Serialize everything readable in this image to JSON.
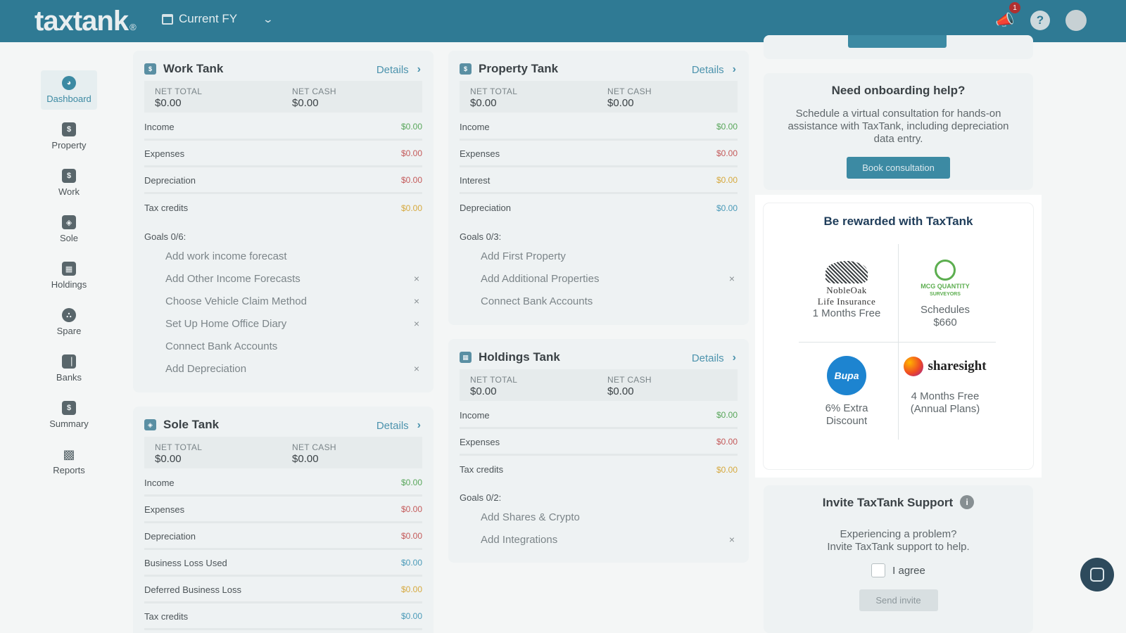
{
  "header": {
    "logo": "taxtank",
    "logo_mark": "®",
    "fy_label": "Current FY",
    "notification_count": "1",
    "help_glyph": "?"
  },
  "sidebar": {
    "items": [
      {
        "label": "Dashboard",
        "icon": "dashboard-icon"
      },
      {
        "label": "Property",
        "icon": "property-icon"
      },
      {
        "label": "Work",
        "icon": "work-icon"
      },
      {
        "label": "Sole",
        "icon": "sole-icon"
      },
      {
        "label": "Holdings",
        "icon": "holdings-icon"
      },
      {
        "label": "Spare",
        "icon": "spare-icon"
      },
      {
        "label": "Banks",
        "icon": "banks-icon"
      },
      {
        "label": "Summary",
        "icon": "summary-icon"
      },
      {
        "label": "Reports",
        "icon": "reports-icon"
      }
    ]
  },
  "common": {
    "details": "Details",
    "net_total": "NET TOTAL",
    "net_cash": "NET CASH",
    "zero": "$0.00",
    "close": "×"
  },
  "work": {
    "title": "Work Tank",
    "rows": [
      {
        "label": "Income",
        "value": "$0.00"
      },
      {
        "label": "Expenses",
        "value": "$0.00"
      },
      {
        "label": "Depreciation",
        "value": "$0.00"
      },
      {
        "label": "Tax credits",
        "value": "$0.00"
      }
    ],
    "goals_label": "Goals 0/6:",
    "goals": [
      "Add work income forecast",
      "Add Other Income Forecasts",
      "Choose Vehicle Claim Method",
      "Set Up Home Office Diary",
      "Connect Bank Accounts",
      "Add Depreciation"
    ]
  },
  "sole": {
    "title": "Sole Tank",
    "rows": [
      {
        "label": "Income",
        "value": "$0.00"
      },
      {
        "label": "Expenses",
        "value": "$0.00"
      },
      {
        "label": "Depreciation",
        "value": "$0.00"
      },
      {
        "label": "Business Loss Used",
        "value": "$0.00"
      },
      {
        "label": "Deferred Business Loss",
        "value": "$0.00"
      },
      {
        "label": "Tax credits",
        "value": "$0.00"
      }
    ]
  },
  "property": {
    "title": "Property Tank",
    "rows": [
      {
        "label": "Income",
        "value": "$0.00"
      },
      {
        "label": "Expenses",
        "value": "$0.00"
      },
      {
        "label": "Interest",
        "value": "$0.00"
      },
      {
        "label": "Depreciation",
        "value": "$0.00"
      }
    ],
    "goals_label": "Goals 0/3:",
    "goals": [
      "Add First Property",
      "Add Additional Properties",
      "Connect Bank Accounts"
    ]
  },
  "holdings": {
    "title": "Holdings Tank",
    "rows": [
      {
        "label": "Income",
        "value": "$0.00"
      },
      {
        "label": "Expenses",
        "value": "$0.00"
      },
      {
        "label": "Tax credits",
        "value": "$0.00"
      }
    ],
    "goals_label": "Goals 0/2:",
    "goals": [
      "Add Shares & Crypto",
      "Add Integrations"
    ]
  },
  "onboarding": {
    "title": "Need onboarding help?",
    "text": "Schedule a virtual consultation for hands-on assistance with TaxTank, including depreciation data entry.",
    "button": "Book consultation"
  },
  "rewards": {
    "title": "Be rewarded with TaxTank",
    "partners": [
      {
        "name": "NobleOak",
        "name2": "Life Insurance",
        "offer": "1 Months Free"
      },
      {
        "name": "MCG QUANTITY",
        "name2": "SURVEYORS",
        "offer": "Schedules",
        "offer2": "$660"
      },
      {
        "name": "Bupa",
        "offer": "6% Extra",
        "offer2": "Discount"
      },
      {
        "name": "sharesight",
        "offer": "4 Months Free",
        "offer2": "(Annual Plans)"
      }
    ]
  },
  "support": {
    "title": "Invite TaxTank Support",
    "info_glyph": "i",
    "line1": "Experiencing a problem?",
    "line2": "Invite TaxTank support to help.",
    "agree": "I agree",
    "button": "Send invite"
  }
}
